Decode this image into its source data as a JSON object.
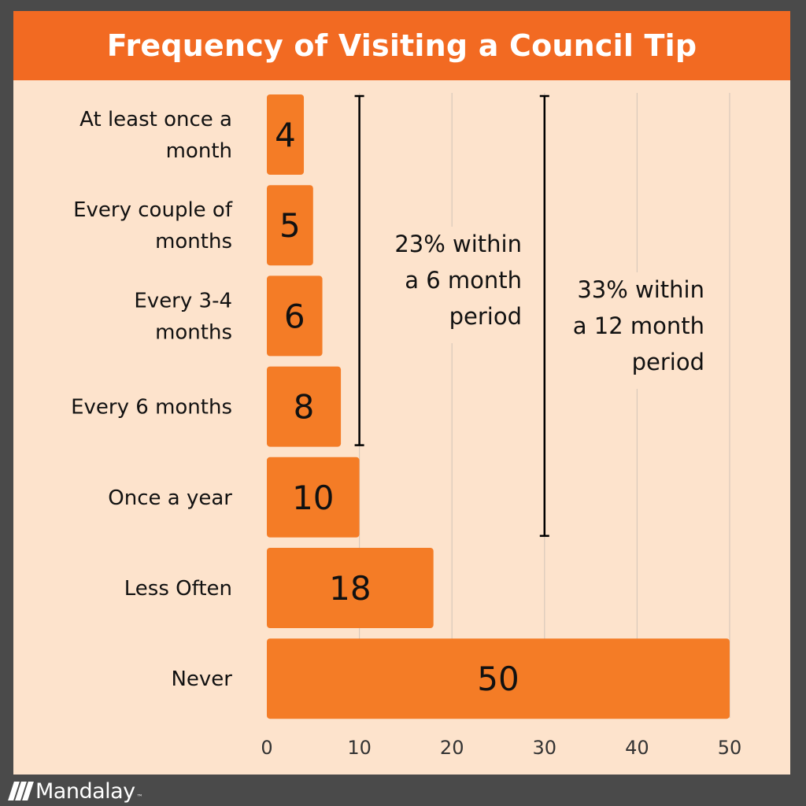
{
  "brand": {
    "name": "Mandalay",
    "tm": "™"
  },
  "colors": {
    "background": "#4a4a4a",
    "panel": "#fde3cc",
    "accent": "#f26a22",
    "bar": "#f47c26",
    "grid": "#d9c9bb",
    "text": "#111111"
  },
  "chart_data": {
    "type": "bar",
    "orientation": "horizontal",
    "title": "Frequency of Visiting a Council Tip",
    "categories": [
      [
        "At least once a",
        "month"
      ],
      [
        "Every couple of",
        "months"
      ],
      [
        "Every 3-4",
        "months"
      ],
      [
        "Every 6 months"
      ],
      [
        "Once a year"
      ],
      [
        "Less Often"
      ],
      [
        "Never"
      ]
    ],
    "values": [
      4,
      5,
      6,
      8,
      10,
      18,
      50
    ],
    "xlim": [
      0,
      50
    ],
    "xticks": [
      0,
      10,
      20,
      30,
      40,
      50
    ],
    "grid": true,
    "annotations": [
      {
        "text": [
          "23% within",
          "a 6 month",
          "period"
        ],
        "from_category": 0,
        "to_category": 3,
        "at_x": 10
      },
      {
        "text": [
          "33% within",
          "a 12 month",
          "period"
        ],
        "from_category": 0,
        "to_category": 4,
        "at_x": 30
      }
    ]
  }
}
